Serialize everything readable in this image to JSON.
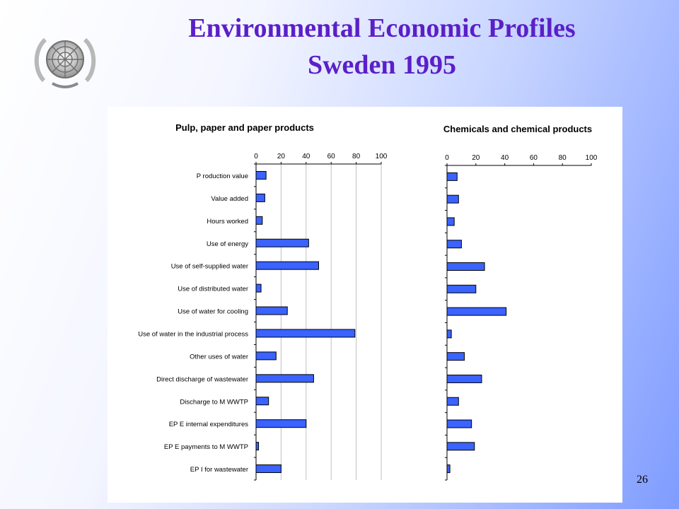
{
  "slide": {
    "title_line1": "Environmental Economic Profiles",
    "title_line2": "Sweden 1995",
    "page_number": "26"
  },
  "colors": {
    "title": "#5b1fc9",
    "bar": "#3a63ff",
    "bar_stroke": "#000000"
  },
  "icons": {
    "logo": "un-emblem-icon"
  },
  "chart_data": [
    {
      "type": "bar",
      "orientation": "horizontal",
      "title": "Pulp, paper and paper products",
      "xlim": [
        0,
        100
      ],
      "xticks": [
        0,
        20,
        40,
        60,
        80,
        100
      ],
      "grid": true,
      "categories": [
        "P roduction value",
        "Value added",
        "Hours worked",
        "Use of energy",
        "Use of self-supplied water",
        "Use of distributed water",
        "Use of water for cooling",
        "Use of water in the industrial process",
        "Other uses of water",
        "Direct discharge of wastewater",
        "Discharge to M WWTP",
        "EP E internal expenditures",
        "EP E payments to M WWTP",
        "EP I for wastewater"
      ],
      "values": [
        8,
        7,
        5,
        42,
        50,
        4,
        25,
        79,
        16,
        46,
        10,
        40,
        2,
        20
      ]
    },
    {
      "type": "bar",
      "orientation": "horizontal",
      "title": "Chemicals and chemical products",
      "xlim": [
        0,
        100
      ],
      "xticks": [
        0,
        20,
        40,
        60,
        80,
        100
      ],
      "grid": false,
      "categories": [
        "P roduction value",
        "Value added",
        "Hours worked",
        "Use of energy",
        "Use of self-supplied water",
        "Use of distributed water",
        "Use of water for cooling",
        "Use of water in the industrial process",
        "Other uses of water",
        "Direct discharge of wastewater",
        "Discharge to M WWTP",
        "EP E internal expenditures",
        "EP E payments to M WWTP",
        "EP I for wastewater"
      ],
      "values": [
        7,
        8,
        5,
        10,
        26,
        20,
        41,
        3,
        12,
        24,
        8,
        17,
        19,
        2
      ]
    }
  ]
}
